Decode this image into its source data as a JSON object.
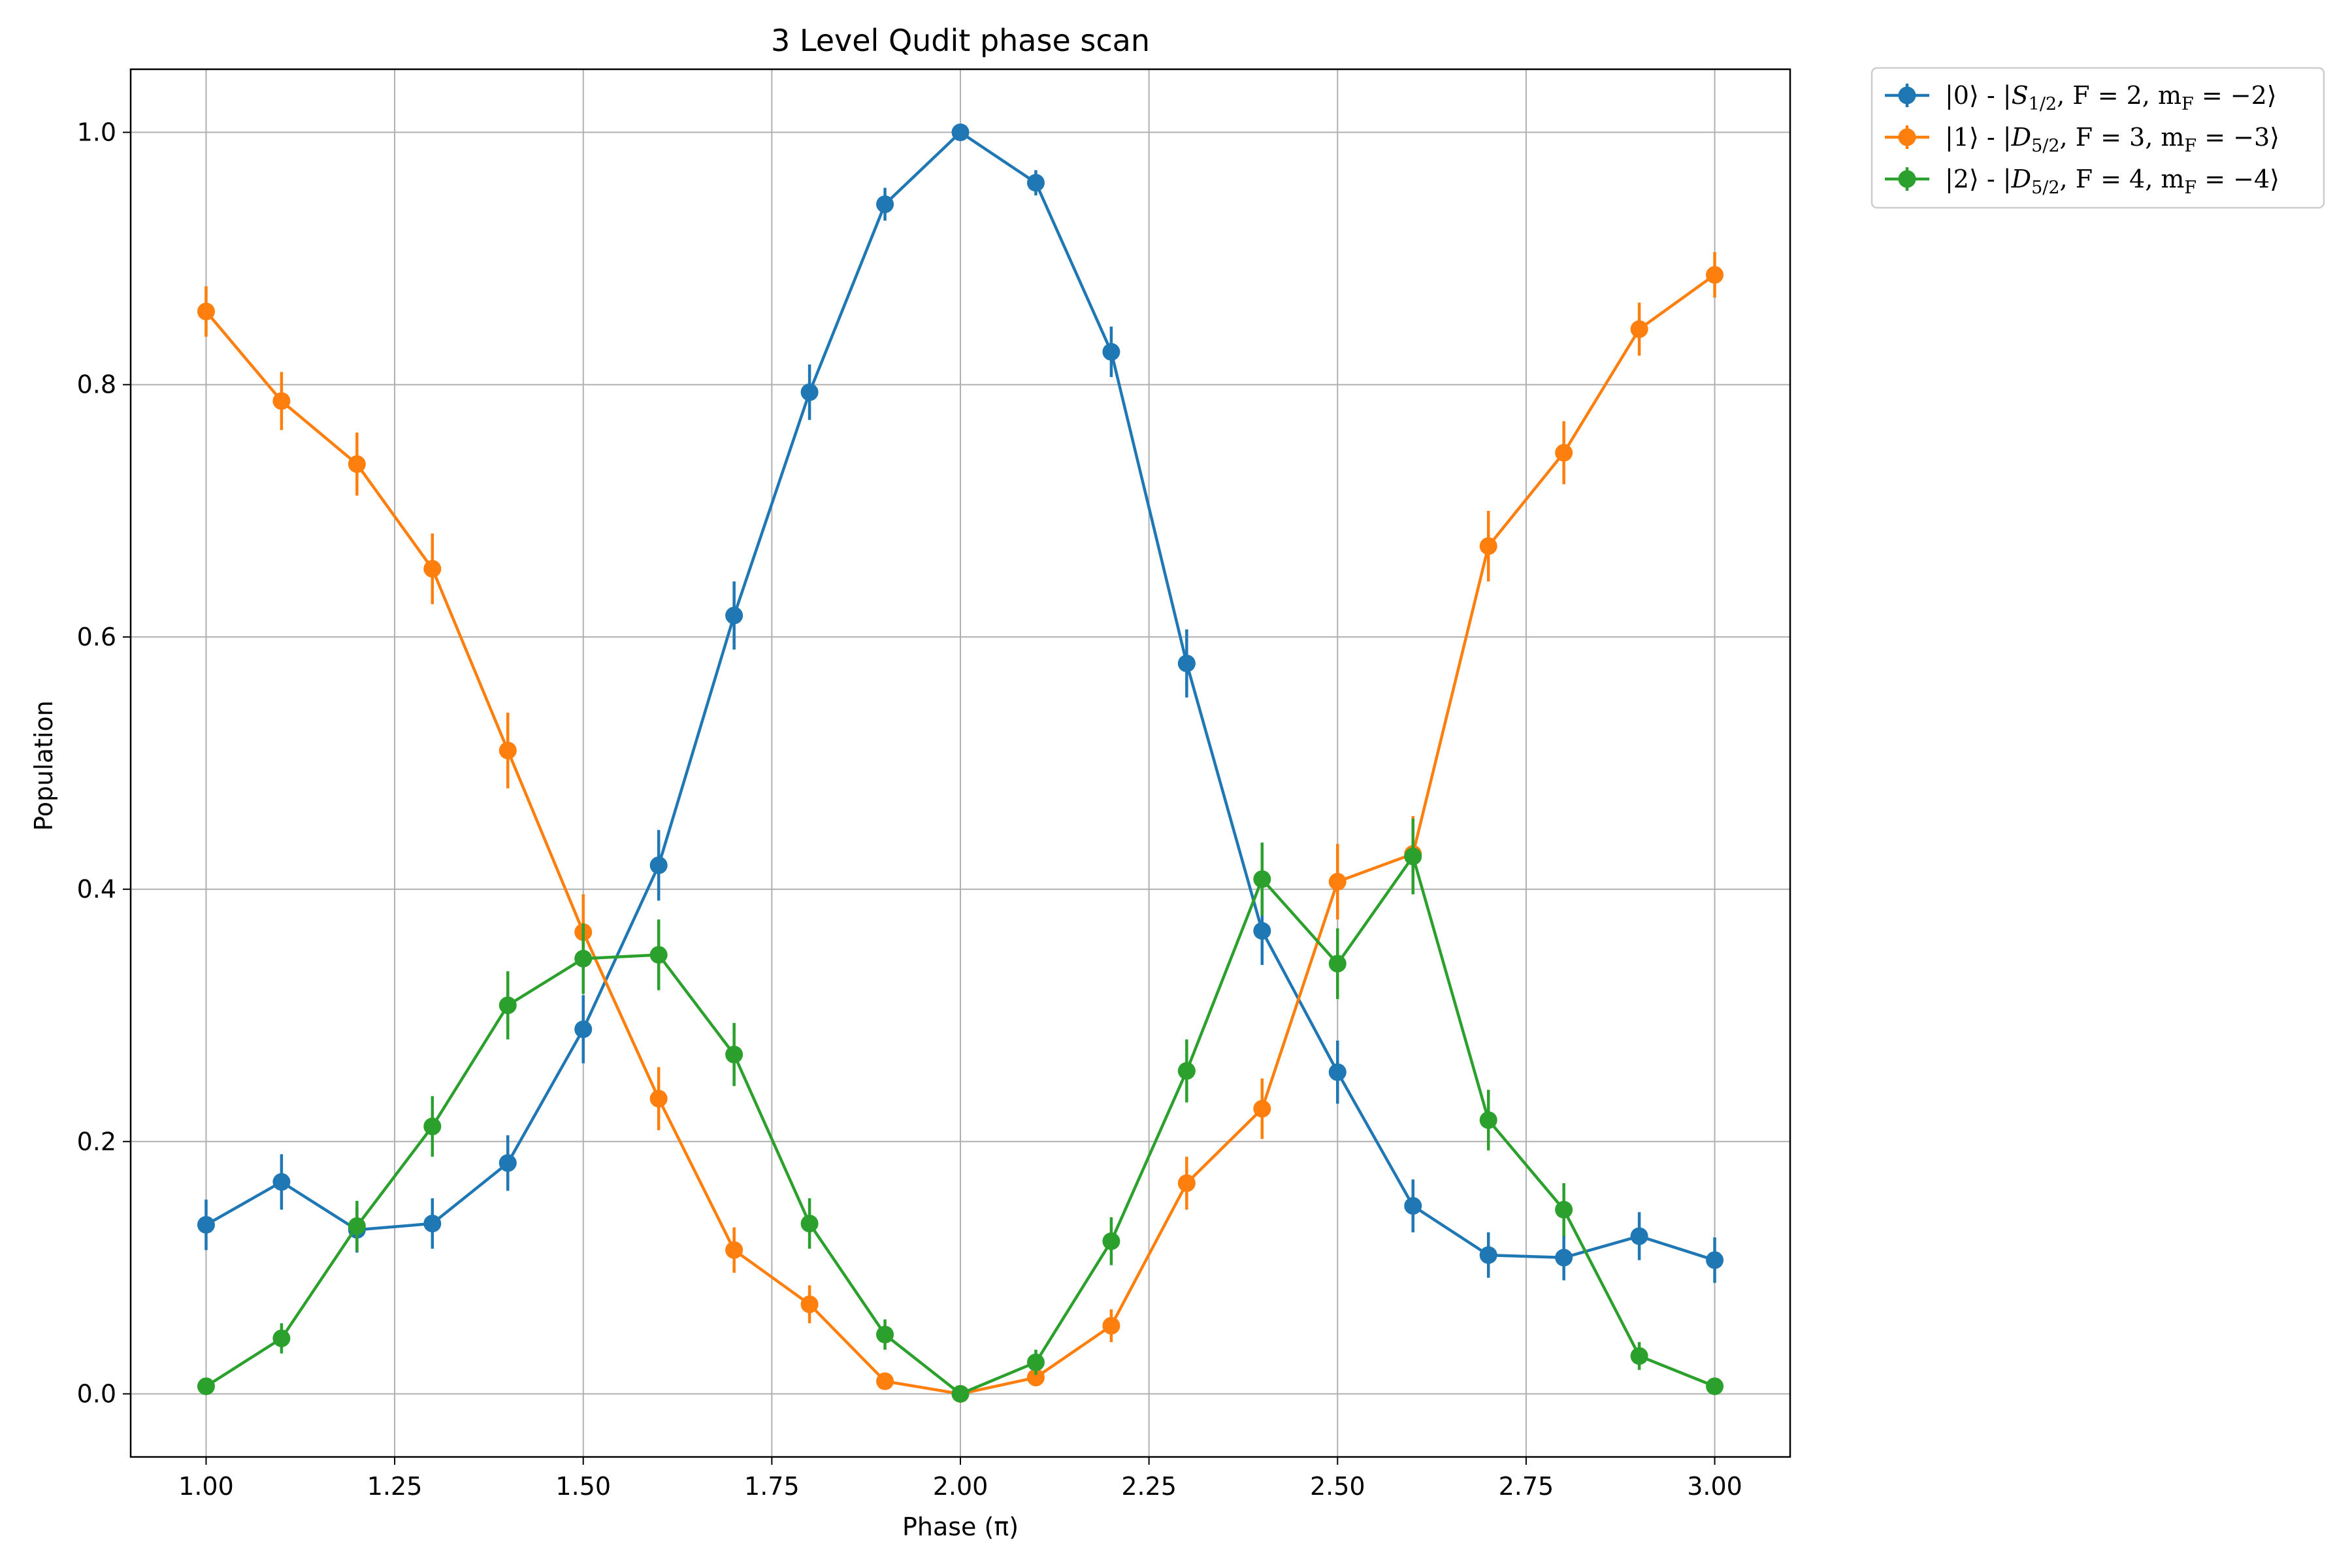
{
  "chart_data": {
    "type": "line",
    "title": "3 Level Qudit phase scan",
    "xlabel": "Phase (π)",
    "ylabel": "Population",
    "xlim": [
      0.9,
      3.1
    ],
    "ylim": [
      -0.05,
      1.05
    ],
    "xticks": [
      1.0,
      1.25,
      1.5,
      1.75,
      2.0,
      2.25,
      2.5,
      2.75,
      3.0
    ],
    "xtick_labels": [
      "1.00",
      "1.25",
      "1.50",
      "1.75",
      "2.00",
      "2.25",
      "2.50",
      "2.75",
      "3.00"
    ],
    "yticks": [
      0.0,
      0.2,
      0.4,
      0.6,
      0.8,
      1.0
    ],
    "ytick_labels": [
      "0.0",
      "0.2",
      "0.4",
      "0.6",
      "0.8",
      "1.0"
    ],
    "grid": true,
    "legend_position": "outside-top-right",
    "error_bars": true,
    "x": [
      1.0,
      1.1,
      1.2,
      1.3,
      1.4,
      1.5,
      1.6,
      1.7,
      1.8,
      1.9,
      2.0,
      2.1,
      2.2,
      2.3,
      2.4,
      2.5,
      2.6,
      2.7,
      2.8,
      2.9,
      3.0
    ],
    "series": [
      {
        "name": "|0⟩ - |S1/2, F = 2, mF = −2⟩",
        "legend": {
          "pre": "|0⟩ - |",
          "main": "S",
          "sub": "1/2",
          "mid": ", F = 2, m",
          "sub2": "F",
          "post": " = −2⟩"
        },
        "color": "#1f77b4",
        "values": [
          0.134,
          0.168,
          0.13,
          0.135,
          0.183,
          0.289,
          0.419,
          0.617,
          0.794,
          0.943,
          1.0,
          0.96,
          0.826,
          0.579,
          0.367,
          0.255,
          0.149,
          0.11,
          0.108,
          0.125,
          0.106
        ],
        "errors": [
          0.02,
          0.022,
          0.018,
          0.02,
          0.022,
          0.027,
          0.028,
          0.027,
          0.022,
          0.013,
          0.0,
          0.01,
          0.02,
          0.027,
          0.027,
          0.025,
          0.021,
          0.018,
          0.018,
          0.019,
          0.018
        ]
      },
      {
        "name": "|1⟩ - |D5/2, F = 3, mF = −3⟩",
        "legend": {
          "pre": "|1⟩ - |",
          "main": "D",
          "sub": "5/2",
          "mid": ", F = 3, m",
          "sub2": "F",
          "post": " = −3⟩"
        },
        "color": "#ff7f0e",
        "values": [
          0.858,
          0.787,
          0.737,
          0.654,
          0.51,
          0.366,
          0.234,
          0.114,
          0.071,
          0.01,
          0.0,
          0.013,
          0.054,
          0.167,
          0.226,
          0.406,
          0.428,
          0.672,
          0.746,
          0.844,
          0.887
        ],
        "errors": [
          0.02,
          0.023,
          0.025,
          0.028,
          0.03,
          0.03,
          0.025,
          0.018,
          0.015,
          0.006,
          0.0,
          0.007,
          0.013,
          0.021,
          0.024,
          0.03,
          0.03,
          0.028,
          0.025,
          0.021,
          0.018
        ]
      },
      {
        "name": "|2⟩ - |D5/2, F = 4, mF = −4⟩",
        "legend": {
          "pre": "|2⟩ - |",
          "main": "D",
          "sub": "5/2",
          "mid": ", F = 4, m",
          "sub2": "F",
          "post": " = −4⟩"
        },
        "color": "#2ca02c",
        "values": [
          0.006,
          0.044,
          0.133,
          0.212,
          0.308,
          0.345,
          0.348,
          0.269,
          0.135,
          0.047,
          0.0,
          0.025,
          0.121,
          0.256,
          0.408,
          0.341,
          0.426,
          0.217,
          0.146,
          0.03,
          0.006
        ],
        "errors": [
          0.005,
          0.012,
          0.02,
          0.024,
          0.027,
          0.028,
          0.028,
          0.025,
          0.02,
          0.012,
          0.0,
          0.01,
          0.019,
          0.025,
          0.029,
          0.028,
          0.03,
          0.024,
          0.021,
          0.011,
          0.005
        ]
      }
    ]
  }
}
